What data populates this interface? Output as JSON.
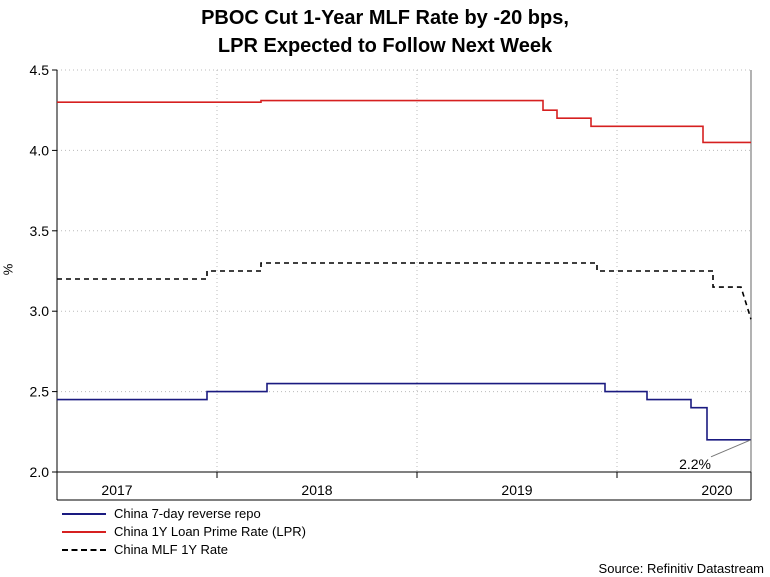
{
  "chart_data": {
    "type": "line",
    "title_line1": "PBOC Cut 1-Year MLF Rate by -20 bps,",
    "title_line2": "LPR Expected to Follow Next Week",
    "ylabel": "%",
    "ylim": [
      2.0,
      4.5
    ],
    "yticks": [
      "2.0",
      "2.5",
      "3.0",
      "3.5",
      "4.0",
      "4.5"
    ],
    "xlim": [
      2016.7,
      2020.17
    ],
    "xticks": [
      {
        "label": "2017",
        "pos": 2017.0
      },
      {
        "label": "2018",
        "pos": 2018.0
      },
      {
        "label": "2019",
        "pos": 2019.0
      },
      {
        "label": "2020",
        "pos": 2020.0
      }
    ],
    "gridlines": [
      2017.5,
      2018.5,
      2019.5
    ],
    "series": [
      {
        "name": "China 7-day reverse repo",
        "color": "#1a1a80",
        "style": "solid",
        "x": [
          2016.7,
          2017.45,
          2017.45,
          2017.75,
          2017.75,
          2019.44,
          2019.44,
          2019.65,
          2019.65,
          2019.87,
          2019.87,
          2019.95,
          2019.95,
          2020.17
        ],
        "y": [
          2.45,
          2.45,
          2.5,
          2.5,
          2.55,
          2.55,
          2.5,
          2.5,
          2.45,
          2.45,
          2.4,
          2.4,
          2.2,
          2.2
        ]
      },
      {
        "name": "China 1Y Loan Prime Rate (LPR)",
        "color": "#d62020",
        "style": "solid",
        "x": [
          2016.7,
          2017.72,
          2017.72,
          2019.13,
          2019.13,
          2019.2,
          2019.2,
          2019.37,
          2019.37,
          2019.47,
          2019.47,
          2019.93,
          2019.93,
          2020.17
        ],
        "y": [
          4.3,
          4.3,
          4.31,
          4.31,
          4.25,
          4.25,
          4.2,
          4.2,
          4.15,
          4.15,
          4.15,
          4.15,
          4.05,
          4.05
        ]
      },
      {
        "name": "China MLF 1Y Rate",
        "color": "#000000",
        "style": "dashed",
        "x": [
          2016.7,
          2017.45,
          2017.45,
          2017.72,
          2017.72,
          2019.4,
          2019.4,
          2019.87,
          2019.87,
          2019.98,
          2019.98,
          2020.12,
          2020.12,
          2020.17
        ],
        "y": [
          3.2,
          3.2,
          3.25,
          3.25,
          3.3,
          3.3,
          3.25,
          3.25,
          3.25,
          3.25,
          3.15,
          3.15,
          3.15,
          2.95
        ]
      }
    ],
    "annotation": {
      "text": "2.2%",
      "x": 2020.17,
      "y": 2.2
    }
  },
  "source": "Source: Refinitiv Datastream"
}
